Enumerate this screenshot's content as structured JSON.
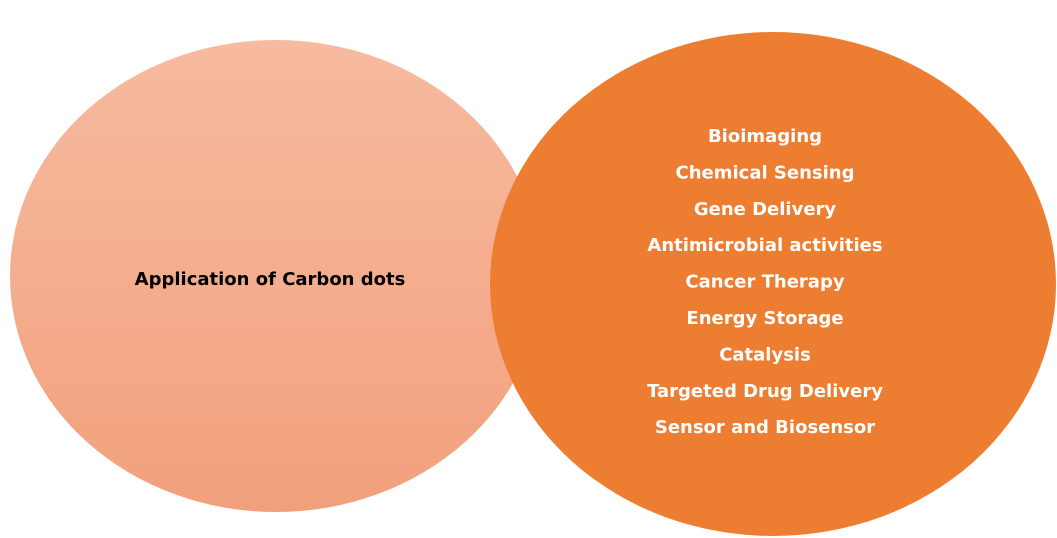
{
  "left": {
    "label": "Application of Carbon dots"
  },
  "right": {
    "items": [
      "Bioimaging",
      "Chemical Sensing",
      "Gene Delivery",
      "Antimicrobial activities",
      "Cancer Therapy",
      "Energy Storage",
      "Catalysis",
      "Targeted Drug Delivery",
      "Sensor and Biosensor"
    ]
  }
}
